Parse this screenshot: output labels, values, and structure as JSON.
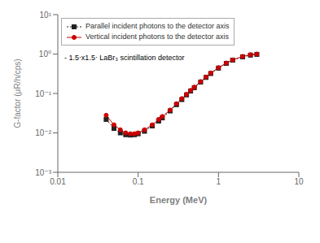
{
  "chart_data": {
    "type": "line",
    "title": "",
    "xlabel": "Energy (MeV)",
    "ylabel": "G-factor (μR/h/cps)",
    "annotation": "- 1.5⋅x1.5⋅ LaBr₃ scintillation detector",
    "log": true,
    "grid": false,
    "legend": "upper left",
    "xlim": [
      0.01,
      10
    ],
    "ylim": [
      0.001,
      10
    ],
    "xticks": [
      0.01,
      0.1,
      1,
      10
    ],
    "yticks": [
      {
        "value": 0.001,
        "label": "10⁻³"
      },
      {
        "value": 0.01,
        "label": "10⁻²"
      },
      {
        "value": 0.1,
        "label": "10⁻¹"
      },
      {
        "value": 1,
        "label": "10⁰"
      },
      {
        "value": 10,
        "label": "10¹"
      }
    ],
    "x": [
      0.04,
      0.05,
      0.06,
      0.07,
      0.08,
      0.09,
      0.1,
      0.12,
      0.15,
      0.18,
      0.2,
      0.25,
      0.3,
      0.35,
      0.4,
      0.45,
      0.5,
      0.6,
      0.7,
      0.8,
      1.0,
      1.25,
      1.5,
      2.0,
      2.5,
      3.0
    ],
    "series": [
      {
        "name": "Parallel incident photons to the detector axis",
        "color": "#222222",
        "marker": "square",
        "line_style": "dotted",
        "values": [
          0.022,
          0.013,
          0.01,
          0.009,
          0.0088,
          0.009,
          0.0095,
          0.011,
          0.015,
          0.02,
          0.024,
          0.036,
          0.052,
          0.07,
          0.092,
          0.115,
          0.14,
          0.195,
          0.255,
          0.32,
          0.44,
          0.58,
          0.7,
          0.85,
          0.94,
          0.98
        ]
      },
      {
        "name": "Vertical incident photons to the detector axis",
        "color": "#cc0000",
        "marker": "circle",
        "line_style": "solid",
        "values": [
          0.028,
          0.016,
          0.012,
          0.01,
          0.0095,
          0.0095,
          0.01,
          0.012,
          0.016,
          0.022,
          0.026,
          0.038,
          0.055,
          0.074,
          0.095,
          0.12,
          0.145,
          0.2,
          0.262,
          0.33,
          0.45,
          0.59,
          0.71,
          0.87,
          0.96,
          1.0
        ]
      }
    ]
  }
}
